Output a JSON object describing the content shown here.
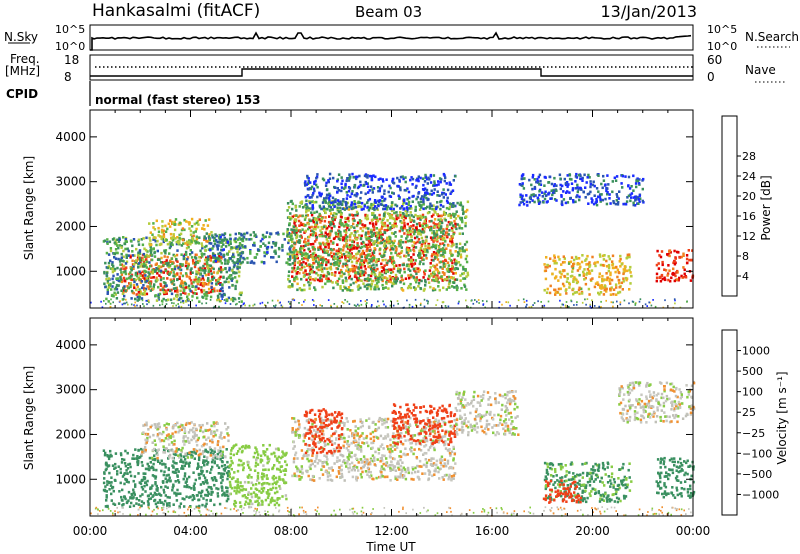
{
  "header": {
    "station": "Hankasalmi (fitACF)",
    "beam": "Beam 03",
    "date": "13/Jan/2013"
  },
  "strip1": {
    "left_label": "N.Sky",
    "right_label": "N.Search",
    "left_ticks": [
      "10^5",
      "10^0"
    ],
    "right_ticks": [
      "10^5",
      "10^0"
    ]
  },
  "strip2": {
    "left_label_1": "Freq.",
    "left_label_2": "[MHz]",
    "right_label": "Nave",
    "left_ticks": [
      "18",
      "8"
    ],
    "right_ticks": [
      "60",
      "0"
    ]
  },
  "cpid": {
    "label": "CPID",
    "value": "normal (fast stereo) 153"
  },
  "xaxis": {
    "label": "Time UT",
    "ticks": [
      "00:00",
      "04:00",
      "08:00",
      "12:00",
      "16:00",
      "20:00",
      "00:00"
    ]
  },
  "colors": {
    "power": [
      "#1a2bff",
      "#2a55b0",
      "#3a8f5c",
      "#55b048",
      "#b4cc3c",
      "#f0b020",
      "#f08020",
      "#f04018",
      "#e00000"
    ],
    "velocity": [
      "#e00000",
      "#f04018",
      "#f09030",
      "#c8c8c0",
      "#c0c0b8",
      "#88cc44",
      "#3a9060",
      "#2a60b0",
      "#1a3aa8"
    ]
  },
  "chart_data": [
    {
      "type": "heatmap",
      "title": "Power",
      "ylabel": "Slant Range [km]",
      "xlabel": "",
      "ylim": [
        180,
        4600
      ],
      "yticks": [
        1000,
        2000,
        3000,
        4000
      ],
      "x_range_hours": [
        0,
        24
      ],
      "colorbar": {
        "label": "Power [dB]",
        "ticks": [
          4,
          8,
          12,
          16,
          20,
          24,
          28
        ]
      },
      "regions": [
        {
          "t0": 1.2,
          "t1": 5.2,
          "r0": 500,
          "r1": 1400,
          "value": 26
        },
        {
          "t0": 0.5,
          "t1": 6.0,
          "r0": 350,
          "r1": 1800,
          "value": 12
        },
        {
          "t0": 2.3,
          "t1": 4.8,
          "r0": 1600,
          "r1": 2200,
          "value": 18
        },
        {
          "t0": 4.5,
          "t1": 8.0,
          "r0": 1200,
          "r1": 1900,
          "value": 9
        },
        {
          "t0": 8.0,
          "t1": 14.5,
          "r0": 800,
          "r1": 2300,
          "value": 27
        },
        {
          "t0": 7.8,
          "t1": 15.0,
          "r0": 600,
          "r1": 2600,
          "value": 14
        },
        {
          "t0": 8.5,
          "t1": 14.5,
          "r0": 2400,
          "r1": 3200,
          "value": 6
        },
        {
          "t0": 18.0,
          "t1": 21.5,
          "r0": 500,
          "r1": 1400,
          "value": 20
        },
        {
          "t0": 17.0,
          "t1": 22.0,
          "r0": 2500,
          "r1": 3200,
          "value": 6
        },
        {
          "t0": 22.5,
          "t1": 24.0,
          "r0": 800,
          "r1": 1500,
          "value": 28
        }
      ]
    },
    {
      "type": "heatmap",
      "title": "Velocity",
      "ylabel": "Slant Range [km]",
      "xlabel": "Time UT",
      "ylim": [
        180,
        4600
      ],
      "yticks": [
        1000,
        2000,
        3000,
        4000
      ],
      "x_range_hours": [
        0,
        24
      ],
      "colorbar": {
        "label": "Velocity [m s⁻¹]",
        "ticks": [
          "1000",
          "500",
          "100",
          "25",
          "−25",
          "−100",
          "−500",
          "−1000"
        ]
      },
      "regions": [
        {
          "t0": 0.5,
          "t1": 5.5,
          "r0": 400,
          "r1": 1700,
          "value": 150
        },
        {
          "t0": 2.0,
          "t1": 5.5,
          "r0": 1500,
          "r1": 2300,
          "value": 0
        },
        {
          "t0": 5.5,
          "t1": 7.8,
          "r0": 400,
          "r1": 1800,
          "value": 60
        },
        {
          "t0": 8.0,
          "t1": 14.5,
          "r0": 1000,
          "r1": 2400,
          "value": 0
        },
        {
          "t0": 8.5,
          "t1": 10.0,
          "r0": 1600,
          "r1": 2600,
          "value": -150
        },
        {
          "t0": 12.0,
          "t1": 14.5,
          "r0": 1800,
          "r1": 2700,
          "value": -200
        },
        {
          "t0": 14.5,
          "t1": 17.0,
          "r0": 2000,
          "r1": 3000,
          "value": 0
        },
        {
          "t0": 18.0,
          "t1": 21.5,
          "r0": 500,
          "r1": 1400,
          "value": 120
        },
        {
          "t0": 18.0,
          "t1": 19.5,
          "r0": 500,
          "r1": 1000,
          "value": -200
        },
        {
          "t0": 21.0,
          "t1": 24.0,
          "r0": 2300,
          "r1": 3200,
          "value": 0
        },
        {
          "t0": 22.5,
          "t1": 24.0,
          "r0": 600,
          "r1": 1500,
          "value": 300
        }
      ]
    }
  ]
}
